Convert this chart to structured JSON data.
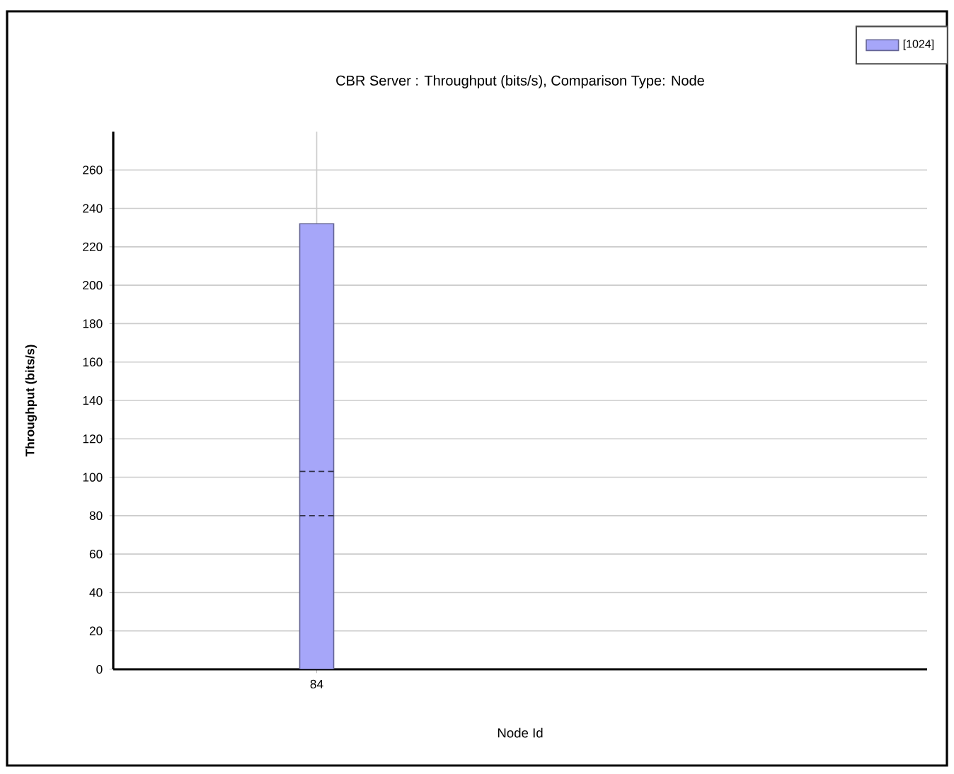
{
  "chart_data": {
    "type": "bar",
    "title": "CBR Server :  Throughput (bits/s), Comparison Type: Node",
    "xlabel": "Node Id",
    "ylabel": "Throughput (bits/s)",
    "categories": [
      "84"
    ],
    "series": [
      {
        "name": "[1024]",
        "color": "#a6a6f9",
        "values": [
          232
        ],
        "errors": [
          [
            80,
            103
          ]
        ]
      }
    ],
    "ylim": [
      0,
      280
    ],
    "yticks": [
      0,
      20,
      40,
      60,
      80,
      100,
      120,
      140,
      160,
      180,
      200,
      220,
      240,
      260
    ],
    "grid": true,
    "legend": "top right"
  }
}
